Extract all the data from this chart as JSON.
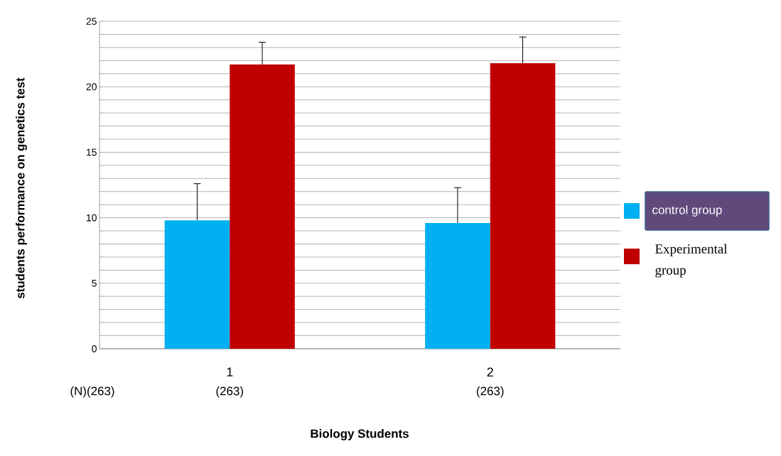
{
  "chart_data": {
    "type": "bar",
    "xlabel": "Biology Students",
    "ylabel": "students performance on genetics test",
    "categories": [
      "1",
      "2"
    ],
    "series": [
      {
        "name": "control group",
        "color": "#00b0f0",
        "values": [
          9.8,
          9.6
        ],
        "errors": [
          [
            9.8,
            12.6
          ],
          [
            9.6,
            12.3
          ]
        ]
      },
      {
        "name": "Experimental group",
        "color": "#c00000",
        "values": [
          21.7,
          21.8
        ],
        "errors": [
          [
            21.7,
            23.4
          ],
          [
            21.8,
            23.8
          ]
        ]
      }
    ],
    "ylim": [
      0,
      25
    ],
    "yticks": [
      0,
      {
        "value": 1,
        "label": null
      },
      {
        "value": 2,
        "label": null
      },
      {
        "value": 3,
        "label": null
      },
      {
        "value": 4,
        "label": null
      },
      5,
      {
        "value": 6,
        "label": null
      },
      {
        "value": 7,
        "label": null
      },
      {
        "value": 8,
        "label": null
      },
      {
        "value": 9,
        "label": null
      },
      10,
      {
        "value": 11,
        "label": null
      },
      {
        "value": 12,
        "label": null
      },
      {
        "value": 13,
        "label": null
      },
      {
        "value": 14,
        "label": null
      },
      15,
      {
        "value": 16,
        "label": null
      },
      {
        "value": 17,
        "label": null
      },
      {
        "value": 18,
        "label": null
      },
      {
        "value": 19,
        "label": null
      },
      20,
      {
        "value": 21,
        "label": null
      },
      {
        "value": 22,
        "label": null
      },
      {
        "value": 23,
        "label": null
      },
      {
        "value": 24,
        "label": null
      },
      25
    ],
    "grid": "y",
    "legend": "right",
    "annotations": [
      "(N)(263)",
      "(263)",
      "(263)"
    ]
  }
}
